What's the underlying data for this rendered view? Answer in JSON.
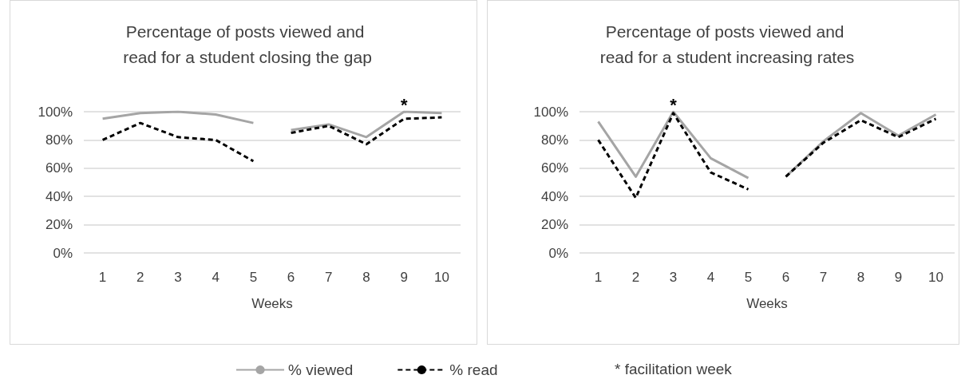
{
  "chart_data": [
    {
      "type": "line",
      "title": "Percentage of posts viewed and read for a student closing the gap",
      "xlabel": "Weeks",
      "categories": [
        "1",
        "2",
        "3",
        "4",
        "5",
        "6",
        "7",
        "8",
        "9",
        "10"
      ],
      "series": [
        {
          "name": "% viewed",
          "color": "#a5a5a5",
          "line_style": "solid",
          "values": [
            95,
            99,
            100,
            98,
            92,
            null,
            null,
            null,
            null,
            null
          ]
        },
        {
          "name": "% read",
          "color": "#000000",
          "line_style": "dashed",
          "values": [
            80,
            92,
            82,
            80,
            65,
            null,
            null,
            null,
            null,
            null
          ]
        },
        {
          "color": "#a5a5a5",
          "line_style": "solid",
          "values": [
            null,
            null,
            null,
            null,
            null,
            87,
            91,
            82,
            100,
            99
          ]
        },
        {
          "color": "#000000",
          "line_style": "dashed",
          "values": [
            null,
            null,
            null,
            null,
            null,
            85,
            90,
            77,
            95,
            96
          ]
        }
      ],
      "ylim": [
        0,
        100
      ],
      "yticks": [
        {
          "value": 0,
          "label": "0%"
        },
        {
          "value": 20,
          "label": "20%"
        },
        {
          "value": 40,
          "label": "40%"
        },
        {
          "value": 60,
          "label": "60%"
        },
        {
          "value": 80,
          "label": "80%"
        },
        {
          "value": 100,
          "label": "100%"
        }
      ],
      "grid": "y",
      "marker": "none",
      "legend": "bottom",
      "annotations": [
        {
          "text": "*",
          "x": "9",
          "y": 100
        },
        "* facilitation week"
      ]
    },
    {
      "type": "line",
      "title": "Percentage of posts viewed and read for a student increasing rates",
      "xlabel": "Weeks",
      "categories": [
        "1",
        "2",
        "3",
        "4",
        "5",
        "6",
        "7",
        "8",
        "9",
        "10"
      ],
      "series": [
        {
          "color": "#a5a5a5",
          "line_style": "solid",
          "values": [
            93,
            54,
            100,
            67,
            53,
            null,
            null,
            null,
            null,
            null
          ]
        },
        {
          "color": "#000000",
          "line_style": "dashed",
          "values": [
            80,
            39,
            99,
            57,
            45,
            null,
            null,
            null,
            null,
            null
          ]
        },
        {
          "color": "#a5a5a5",
          "line_style": "solid",
          "values": [
            null,
            null,
            null,
            null,
            null,
            54,
            79,
            99,
            83,
            98
          ]
        },
        {
          "color": "#000000",
          "line_style": "dashed",
          "values": [
            null,
            null,
            null,
            null,
            null,
            54,
            78,
            94,
            82,
            95
          ]
        }
      ],
      "ylim": [
        0,
        100
      ],
      "yticks": [
        {
          "value": 0,
          "label": "0%"
        },
        {
          "value": 20,
          "label": "20%"
        },
        {
          "value": 40,
          "label": "40%"
        },
        {
          "value": 60,
          "label": "60%"
        },
        {
          "value": 80,
          "label": "80%"
        },
        {
          "value": 100,
          "label": "100%"
        }
      ],
      "grid": "y",
      "marker": "none",
      "legend": false,
      "annotations": [
        {
          "text": "*",
          "x": "3",
          "y": 100
        }
      ]
    }
  ]
}
